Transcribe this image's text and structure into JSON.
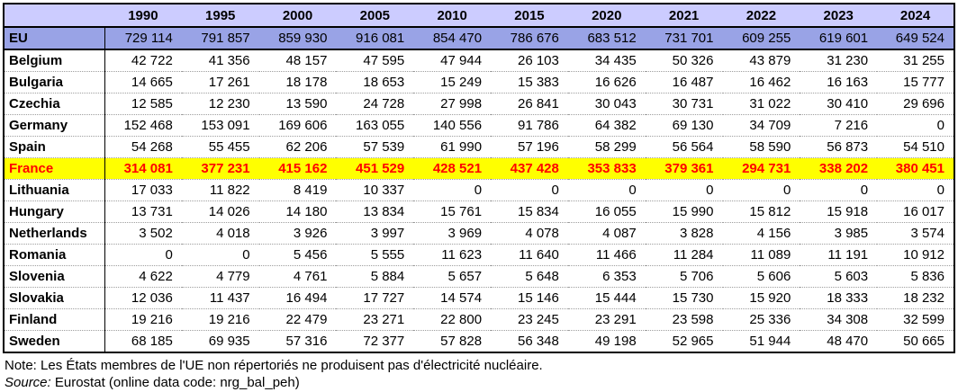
{
  "colors": {
    "header_bg": "#CCCCFF",
    "eu_row_bg": "#99A3E6",
    "france_row_bg": "#FFFF00",
    "france_text": "#FF0000",
    "border": "#000000"
  },
  "footer": {
    "note": "Note: Les États membres de l'UE non répertoriés ne produisent pas d'électricité nucléaire.",
    "source_label": "Source:",
    "source_text": " Eurostat (online data code: nrg_bal_peh)"
  },
  "chart_data": {
    "type": "table",
    "number_format": "space-thousands",
    "columns": [
      "1990",
      "1995",
      "2000",
      "2005",
      "2010",
      "2015",
      "2020",
      "2021",
      "2022",
      "2023",
      "2024"
    ],
    "rows": [
      {
        "name": "EU",
        "highlight": "eu",
        "values": [
          729114,
          791857,
          859930,
          916081,
          854470,
          786676,
          683512,
          731701,
          609255,
          619601,
          649524
        ]
      },
      {
        "name": "Belgium",
        "values": [
          42722,
          41356,
          48157,
          47595,
          47944,
          26103,
          34435,
          50326,
          43879,
          31230,
          31255
        ]
      },
      {
        "name": "Bulgaria",
        "values": [
          14665,
          17261,
          18178,
          18653,
          15249,
          15383,
          16626,
          16487,
          16462,
          16163,
          15777
        ]
      },
      {
        "name": "Czechia",
        "values": [
          12585,
          12230,
          13590,
          24728,
          27998,
          26841,
          30043,
          30731,
          31022,
          30410,
          29696
        ]
      },
      {
        "name": "Germany",
        "values": [
          152468,
          153091,
          169606,
          163055,
          140556,
          91786,
          64382,
          69130,
          34709,
          7216,
          0
        ]
      },
      {
        "name": "Spain",
        "values": [
          54268,
          55455,
          62206,
          57539,
          61990,
          57196,
          58299,
          56564,
          58590,
          56873,
          54510
        ]
      },
      {
        "name": "France",
        "highlight": "france",
        "values": [
          314081,
          377231,
          415162,
          451529,
          428521,
          437428,
          353833,
          379361,
          294731,
          338202,
          380451
        ]
      },
      {
        "name": "Lithuania",
        "values": [
          17033,
          11822,
          8419,
          10337,
          0,
          0,
          0,
          0,
          0,
          0,
          0
        ]
      },
      {
        "name": "Hungary",
        "values": [
          13731,
          14026,
          14180,
          13834,
          15761,
          15834,
          16055,
          15990,
          15812,
          15918,
          16017
        ]
      },
      {
        "name": "Netherlands",
        "values": [
          3502,
          4018,
          3926,
          3997,
          3969,
          4078,
          4087,
          3828,
          4156,
          3985,
          3574
        ]
      },
      {
        "name": "Romania",
        "values": [
          0,
          0,
          5456,
          5555,
          11623,
          11640,
          11466,
          11284,
          11089,
          11191,
          10912
        ]
      },
      {
        "name": "Slovenia",
        "values": [
          4622,
          4779,
          4761,
          5884,
          5657,
          5648,
          6353,
          5706,
          5606,
          5603,
          5836
        ]
      },
      {
        "name": "Slovakia",
        "values": [
          12036,
          11437,
          16494,
          17727,
          14574,
          15146,
          15444,
          15730,
          15920,
          18333,
          18232
        ]
      },
      {
        "name": "Finland",
        "values": [
          19216,
          19216,
          22479,
          23271,
          22800,
          23245,
          23291,
          23598,
          25336,
          34308,
          32599
        ]
      },
      {
        "name": "Sweden",
        "values": [
          68185,
          69935,
          57316,
          72377,
          57828,
          56348,
          49198,
          52965,
          51944,
          48470,
          50665
        ]
      }
    ]
  }
}
